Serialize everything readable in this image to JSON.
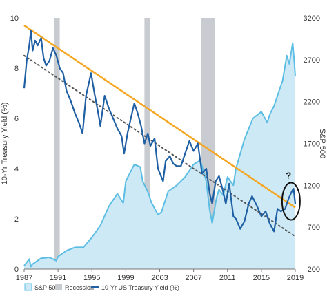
{
  "chart_data": {
    "type": "line",
    "x_range": [
      1987,
      2019
    ],
    "x_ticks": [
      "1987",
      "1991",
      "1995",
      "1999",
      "2003",
      "2007",
      "2011",
      "2015",
      "2019"
    ],
    "y_left": {
      "label": "10-Yr Treasury Yield (%)",
      "range": [
        0,
        10
      ],
      "ticks": [
        "0",
        "2",
        "4",
        "6",
        "8",
        "10"
      ]
    },
    "y_right": {
      "label": "S&P 500",
      "range": [
        200,
        3200
      ],
      "ticks": [
        "200",
        "700",
        "1200",
        "1700",
        "2200",
        "2700",
        "3200"
      ]
    },
    "legend": {
      "sp500": "S&P 500",
      "recession": "Recession",
      "yield": "10-Yr US Treasury Yield (%)"
    },
    "annotation": "?",
    "colors": {
      "sp500_fill": "#cde9f5",
      "sp500_line": "#5bbde3",
      "yield_line": "#1f5fa3",
      "trend_line": "#f5a623",
      "dotted_trend": "#555555",
      "recession": "#c8cbcf"
    },
    "recessions": [
      [
        1990.5,
        1991.2
      ],
      [
        2001.2,
        2001.9
      ],
      [
        2007.9,
        2009.5
      ]
    ],
    "trend_line": {
      "x": [
        1987,
        2019
      ],
      "y": [
        9.7,
        2.45
      ]
    },
    "dotted_trend": {
      "x": [
        1987,
        2019
      ],
      "y": [
        8.5,
        1.3
      ]
    },
    "series": [
      {
        "name": "10-Yr US Treasury Yield (%)",
        "axis": "left",
        "x": [
          1987,
          1987.3,
          1987.6,
          1987.8,
          1988,
          1988.3,
          1988.6,
          1989,
          1989.3,
          1989.6,
          1990,
          1990.4,
          1990.8,
          1991.2,
          1991.6,
          1992,
          1992.5,
          1993,
          1993.5,
          1993.9,
          1994.3,
          1994.9,
          1995.3,
          1995.7,
          1996,
          1996.5,
          1997,
          1997.5,
          1998,
          1998.5,
          1998.8,
          1999.2,
          1999.6,
          2000,
          2000.4,
          2000.8,
          2001.2,
          2001.6,
          2001.9,
          2002.4,
          2002.8,
          2003.4,
          2003.7,
          2004.2,
          2004.6,
          2005,
          2005.5,
          2006,
          2006.5,
          2007,
          2007.5,
          2008,
          2008.5,
          2008.9,
          2009.2,
          2009.6,
          2010,
          2010.4,
          2010.8,
          2011.2,
          2011.7,
          2012,
          2012.5,
          2013,
          2013.5,
          2013.9,
          2014.5,
          2015,
          2015.5,
          2016,
          2016.5,
          2016.9,
          2017.3,
          2017.8,
          2018.2,
          2018.6,
          2018.8,
          2019
        ],
        "y": [
          7.2,
          8.3,
          8.9,
          9.5,
          8.7,
          9.1,
          8.9,
          9.2,
          8.4,
          8.1,
          8.3,
          8.8,
          8.5,
          8.0,
          7.8,
          7.1,
          6.7,
          6.2,
          5.8,
          5.4,
          6.9,
          7.8,
          7.0,
          6.3,
          5.7,
          6.9,
          6.4,
          6.0,
          5.6,
          5.3,
          4.6,
          5.4,
          6.0,
          6.6,
          6.2,
          5.7,
          5.0,
          5.4,
          4.9,
          5.2,
          4.0,
          3.5,
          4.3,
          4.5,
          4.2,
          4.1,
          4.1,
          4.6,
          5.1,
          4.7,
          5.0,
          3.8,
          4.0,
          3.0,
          2.6,
          3.5,
          3.7,
          3.2,
          2.6,
          3.4,
          2.1,
          2.0,
          1.6,
          1.9,
          2.6,
          2.9,
          2.5,
          2.1,
          2.3,
          1.8,
          1.5,
          2.4,
          2.3,
          2.4,
          2.8,
          3.1,
          3.2,
          2.6
        ],
        "color": "#1f5fa3"
      },
      {
        "name": "S&P 500",
        "axis": "right",
        "x": [
          1987,
          1987.6,
          1987.8,
          1988,
          1989,
          1990,
          1990.8,
          1991,
          1992,
          1993,
          1994,
          1995,
          1996,
          1997,
          1998,
          1998.7,
          1999,
          1999.5,
          2000,
          2000.7,
          2001,
          2001.7,
          2002,
          2002.8,
          2003.2,
          2004,
          2005,
          2006,
          2007,
          2007.8,
          2008.5,
          2008.9,
          2009.2,
          2009.7,
          2010,
          2010.5,
          2011,
          2011.7,
          2012,
          2013,
          2014,
          2015,
          2015.7,
          2016,
          2016.5,
          2017,
          2017.5,
          2018,
          2018.3,
          2018.7,
          2018.9,
          2019
        ],
        "y": [
          240,
          320,
          230,
          260,
          330,
          340,
          300,
          350,
          420,
          460,
          460,
          580,
          720,
          950,
          1100,
          990,
          1250,
          1350,
          1450,
          1420,
          1250,
          1100,
          1000,
          850,
          880,
          1130,
          1200,
          1300,
          1450,
          1500,
          1250,
          900,
          750,
          1050,
          1150,
          1080,
          1300,
          1200,
          1400,
          1750,
          2000,
          2080,
          1950,
          2050,
          2150,
          2300,
          2450,
          2750,
          2650,
          2900,
          2650,
          2500
        ],
        "color": "#5bbde3"
      }
    ]
  }
}
